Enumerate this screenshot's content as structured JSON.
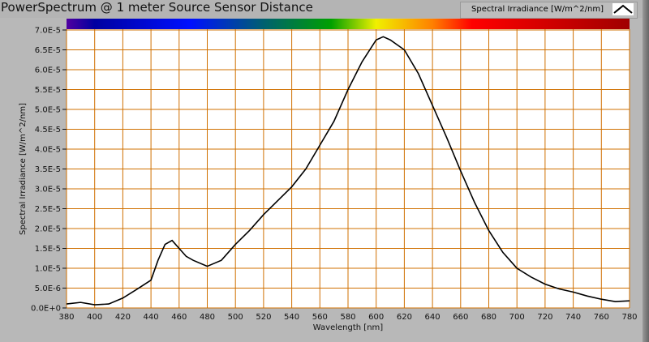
{
  "title": "PowerSpectrum @ 1 meter Source Sensor Distance",
  "legend_label": "Spectral Irradiance [W/m^2/nm]",
  "chart_data": {
    "type": "line",
    "title": "PowerSpectrum @ 1 meter Source Sensor Distance",
    "xlabel": "Wavelength [nm]",
    "ylabel": "Spectral Irradiance [W/m^2/nm]",
    "xlim": [
      380,
      780
    ],
    "ylim": [
      0,
      7e-05
    ],
    "xticks": [
      380,
      400,
      420,
      440,
      460,
      480,
      500,
      520,
      540,
      560,
      580,
      600,
      620,
      640,
      660,
      680,
      700,
      720,
      740,
      760,
      780
    ],
    "yticks": [
      "0.0E+0",
      "5.0E-6",
      "1.0E-5",
      "1.5E-5",
      "2.0E-5",
      "2.5E-5",
      "3.0E-5",
      "3.5E-5",
      "4.0E-5",
      "4.5E-5",
      "5.0E-5",
      "5.5E-5",
      "6.0E-5",
      "6.5E-5",
      "7.0E-5"
    ],
    "grid": true,
    "series": [
      {
        "name": "Spectral Irradiance [W/m^2/nm]",
        "color": "#000000",
        "x": [
          380,
          390,
          400,
          410,
          420,
          430,
          440,
          445,
          450,
          455,
          460,
          465,
          470,
          480,
          490,
          500,
          510,
          520,
          530,
          540,
          550,
          560,
          570,
          580,
          590,
          600,
          605,
          610,
          620,
          630,
          640,
          650,
          660,
          670,
          680,
          690,
          700,
          710,
          720,
          730,
          740,
          750,
          760,
          770,
          780
        ],
        "y": [
          1e-06,
          1.4e-06,
          8e-07,
          1e-06,
          2.5e-06,
          4.7e-06,
          7e-06,
          1.2e-05,
          1.6e-05,
          1.7e-05,
          1.5e-05,
          1.3e-05,
          1.2e-05,
          1.05e-05,
          1.2e-05,
          1.6e-05,
          1.95e-05,
          2.35e-05,
          2.7e-05,
          3.05e-05,
          3.5e-05,
          4.1e-05,
          4.7e-05,
          5.5e-05,
          6.2e-05,
          6.75e-05,
          6.83e-05,
          6.75e-05,
          6.5e-05,
          5.9e-05,
          5.1e-05,
          4.3e-05,
          3.45e-05,
          2.65e-05,
          1.95e-05,
          1.4e-05,
          1e-05,
          7.8e-06,
          6e-06,
          4.8e-06,
          4e-06,
          3e-06,
          2.2e-06,
          1.6e-06,
          1.8e-06
        ]
      }
    ]
  },
  "colors": {
    "grid": "#d07000",
    "line": "#000000"
  }
}
